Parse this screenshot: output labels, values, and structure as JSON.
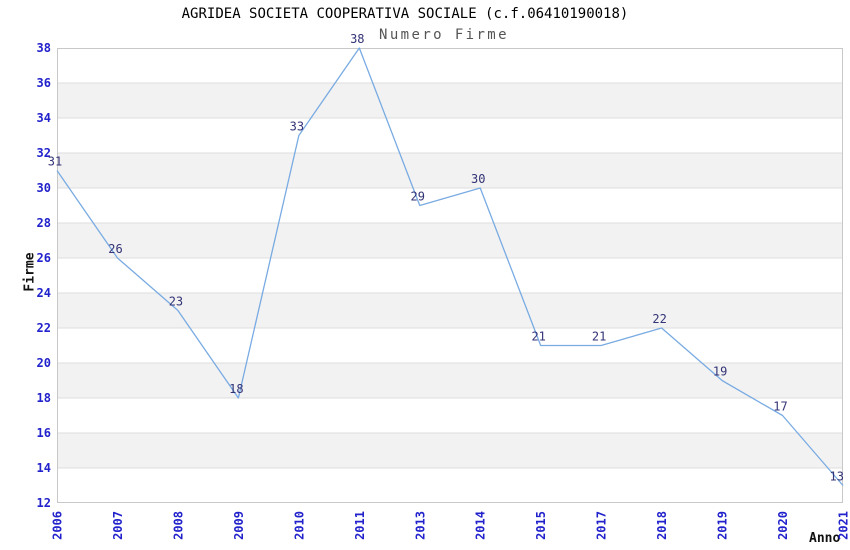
{
  "chart_data": {
    "type": "line",
    "title": "AGRIDEA SOCIETA COOPERATIVA SOCIALE (c.f.06410190018)",
    "subtitle": "Numero Firme",
    "xlabel": "Anno",
    "ylabel": "Firme",
    "categories": [
      "2006",
      "2007",
      "2008",
      "2009",
      "2010",
      "2011",
      "2013",
      "2014",
      "2015",
      "2017",
      "2018",
      "2019",
      "2020",
      "2021"
    ],
    "values": [
      31,
      26,
      23,
      18,
      33,
      38,
      29,
      30,
      21,
      21,
      22,
      19,
      17,
      13
    ],
    "ylim": [
      12,
      38
    ],
    "ytick_step": 2,
    "grid": "horizontal-bands",
    "legend": "none",
    "point_markers": false,
    "colors": {
      "line": "#79abe2",
      "tick_label": "#2222cc",
      "value_label": "#333377",
      "band": "#f2f2f2",
      "gridline": "#dddddd",
      "border": "#c8c8c8",
      "title": "#000000",
      "subtitle": "#555555",
      "axis_title": "#111111"
    }
  }
}
